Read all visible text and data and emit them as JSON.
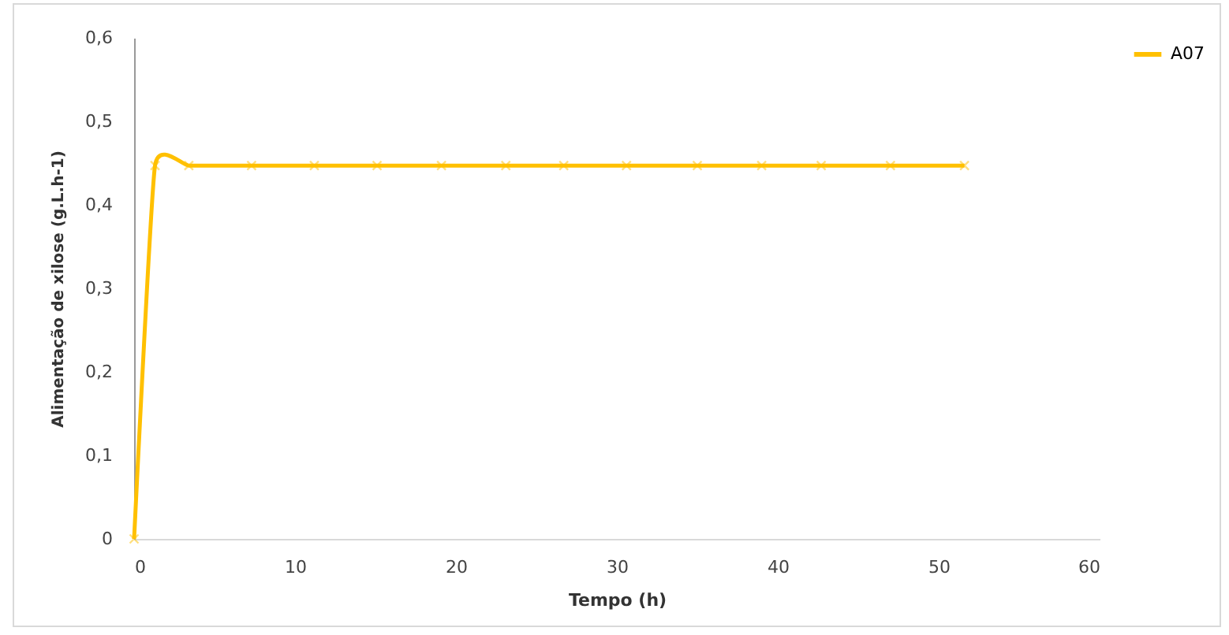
{
  "chart_data": {
    "type": "line",
    "xlabel": "Tempo (h)",
    "ylabel": "Alimentação de xilose (g.L.h-1)",
    "series": [
      {
        "name": "A07",
        "color": "#ffc000",
        "x": [
          0,
          1.3,
          3.4,
          7.3,
          11.2,
          15.1,
          19.1,
          23.1,
          26.7,
          30.6,
          35,
          39,
          42.7,
          47,
          51.6
        ],
        "values": [
          0,
          0.447,
          0.447,
          0.447,
          0.447,
          0.447,
          0.447,
          0.447,
          0.447,
          0.447,
          0.447,
          0.447,
          0.447,
          0.447,
          0.447
        ]
      }
    ],
    "xlim": [
      0,
      60
    ],
    "xticks": [
      0,
      10,
      20,
      30,
      40,
      50,
      60
    ],
    "ylim": [
      0,
      0.6
    ],
    "yticks": [
      {
        "value": 0,
        "label": "0"
      },
      {
        "value": 0.1,
        "label": "0,1"
      },
      {
        "value": 0.2,
        "label": "0,2"
      },
      {
        "value": 0.3,
        "label": "0,3"
      },
      {
        "value": 0.4,
        "label": "0,4"
      },
      {
        "value": 0.5,
        "label": "0,5"
      },
      {
        "value": 0.6,
        "label": "0,6"
      }
    ],
    "grid": false,
    "legend": "right",
    "marker": "cross",
    "line_style": "solid"
  }
}
